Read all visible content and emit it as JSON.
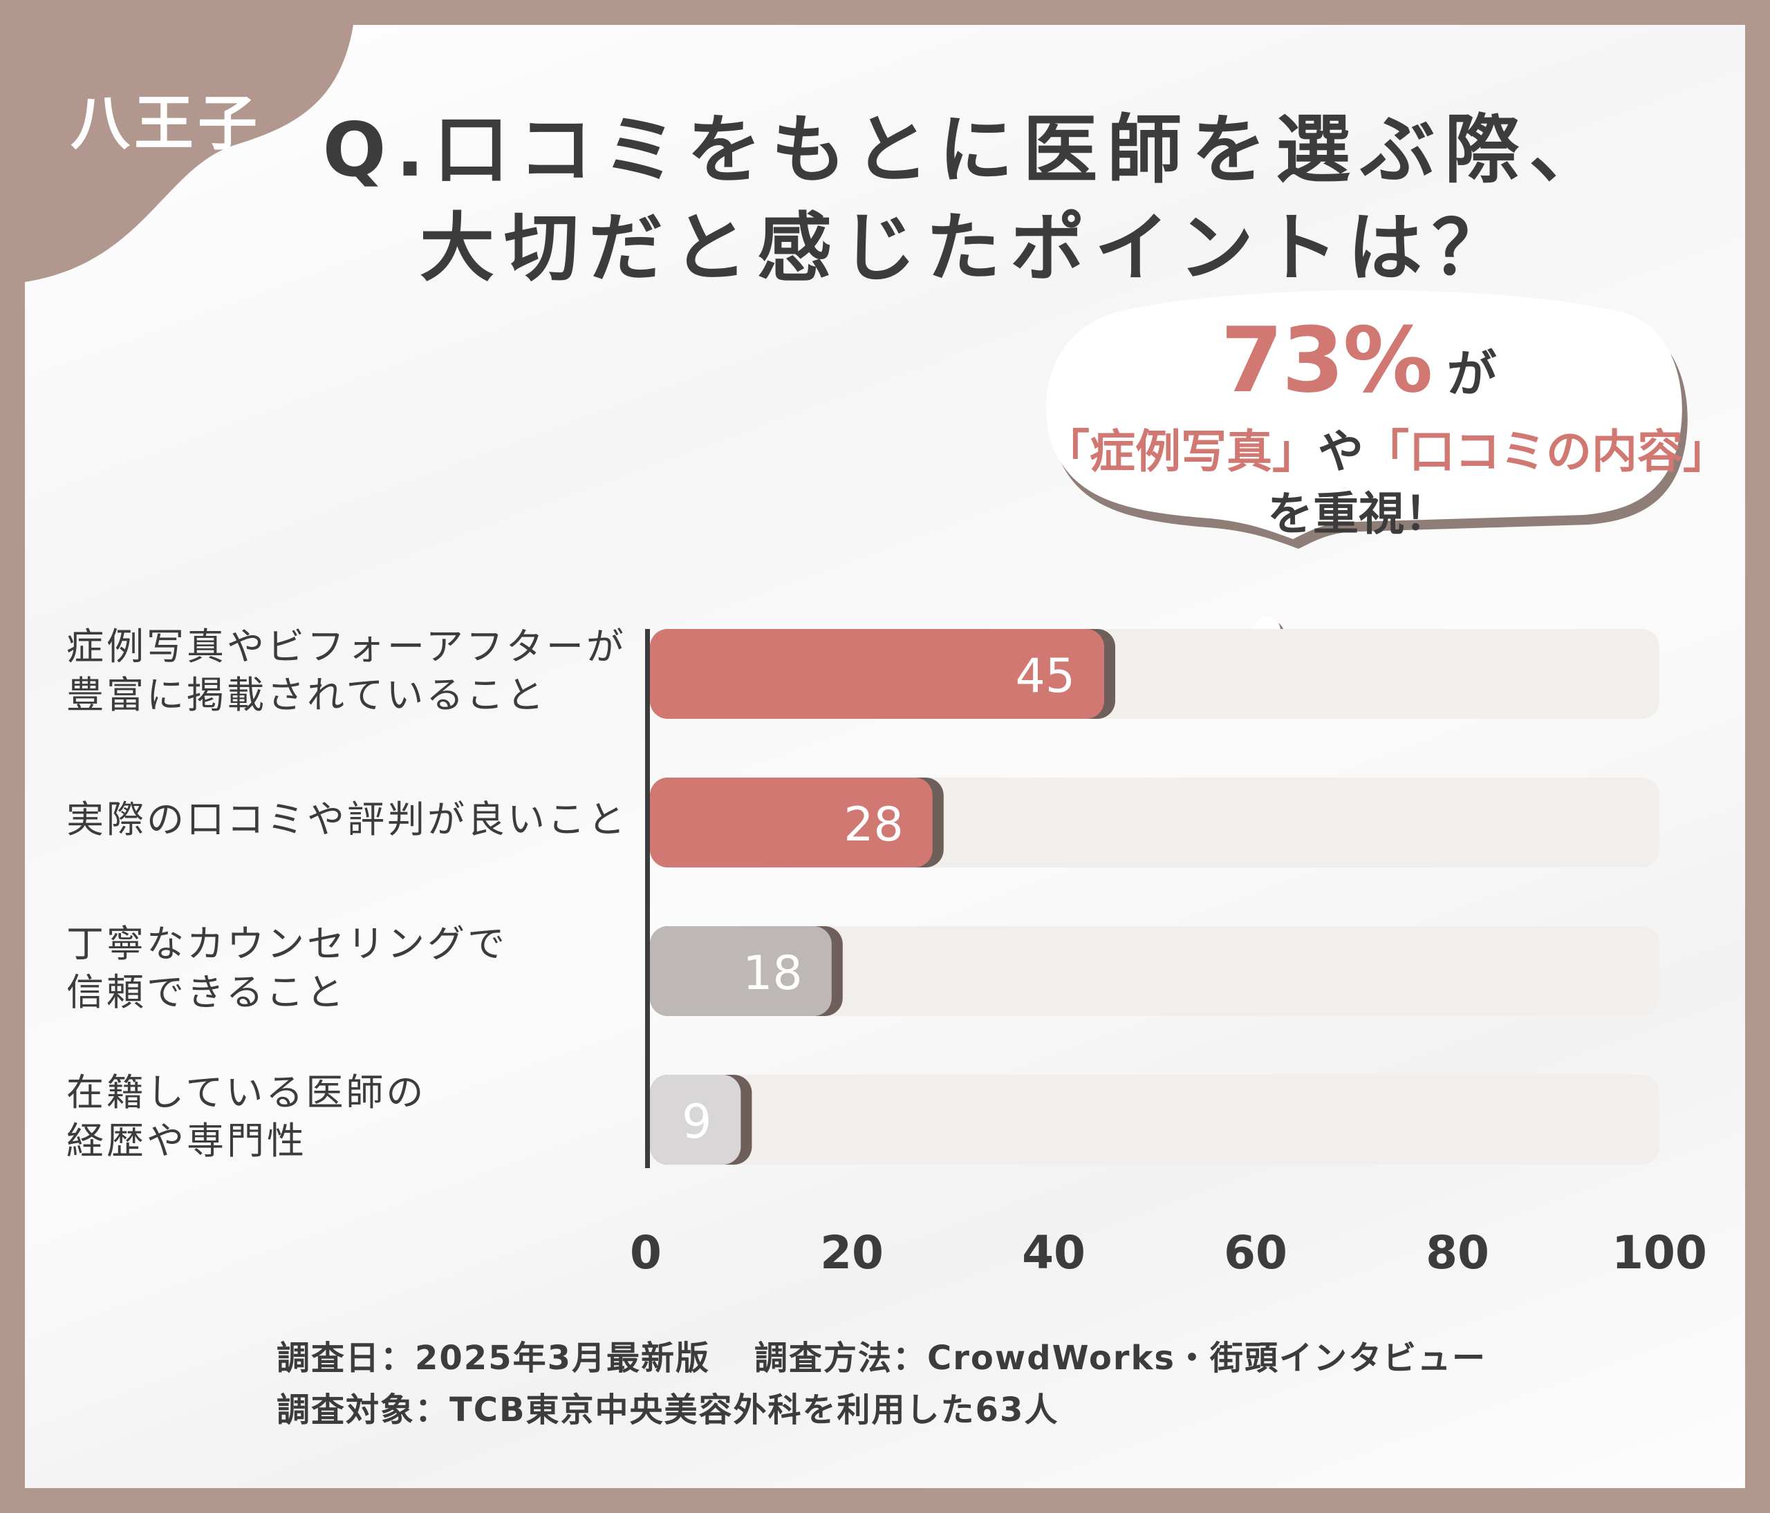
{
  "tag": "八王子",
  "title": {
    "line1": "Q.口コミをもとに医師を選ぶ際、",
    "line2": "大切だと感じたポイントは？"
  },
  "callout": {
    "percent": "73%",
    "ga": "が",
    "q1": "「症例写真」",
    "ya": "や",
    "q2": "「口コミの内容」",
    "line3": "を重視！"
  },
  "chart_data": {
    "type": "bar",
    "orientation": "horizontal",
    "categories": [
      [
        "症例写真やビフォーアフターが",
        "豊富に掲載されていること"
      ],
      [
        "実際の口コミや評判が良いこと"
      ],
      [
        "丁寧なカウンセリングで",
        "信頼できること"
      ],
      [
        "在籍している医師の",
        "経歴や専門性"
      ]
    ],
    "values": [
      45,
      28,
      18,
      9
    ],
    "bar_colors": [
      "#d27872",
      "#d27872",
      "#bdb8b6",
      "#d8d6d6"
    ],
    "xlim": [
      0,
      100
    ],
    "xticks": [
      "0",
      "20",
      "40",
      "60",
      "80",
      "100"
    ],
    "grid": false
  },
  "footer": {
    "date": "調査日：2025年3月最新版",
    "method": "調査方法：CrowdWorks・街頭インタビュー",
    "target": "調査対象：TCB東京中央美容外科を利用した63人"
  },
  "colors": {
    "accent": "#d27872",
    "frame": "#b2978f",
    "track": "#f1eeec",
    "text": "#3c3c3c"
  }
}
